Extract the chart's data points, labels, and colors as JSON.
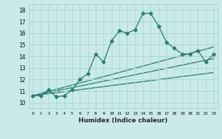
{
  "xlabel": "Humidex (Indice chaleur)",
  "xlim": [
    -0.5,
    23.5
  ],
  "ylim": [
    9.5,
    18.5
  ],
  "yticks": [
    10,
    11,
    12,
    13,
    14,
    15,
    16,
    17,
    18
  ],
  "xticks": [
    0,
    1,
    2,
    3,
    4,
    5,
    6,
    7,
    8,
    9,
    10,
    11,
    12,
    13,
    14,
    15,
    16,
    17,
    18,
    19,
    20,
    21,
    22,
    23
  ],
  "bg_color": "#caeaea",
  "grid_color": "#a8d8d8",
  "line_color": "#2e7d70",
  "line_width": 1.0,
  "marker": "D",
  "marker_size": 2.5,
  "lines": [
    {
      "x": [
        0,
        1,
        2,
        3,
        4,
        5,
        6,
        7,
        8,
        9,
        10,
        11,
        12,
        13,
        14,
        15,
        16,
        17,
        18,
        19,
        20,
        21,
        22,
        23
      ],
      "y": [
        10.6,
        10.6,
        11.1,
        10.5,
        10.6,
        11.1,
        12.0,
        12.5,
        14.2,
        13.5,
        15.3,
        16.2,
        16.0,
        16.3,
        17.7,
        17.7,
        16.6,
        15.2,
        14.7,
        14.2,
        14.2,
        14.5,
        13.5,
        14.2
      ]
    },
    {
      "x": [
        0,
        23
      ],
      "y": [
        10.6,
        14.8
      ]
    },
    {
      "x": [
        0,
        23
      ],
      "y": [
        10.6,
        13.8
      ]
    },
    {
      "x": [
        0,
        23
      ],
      "y": [
        10.6,
        12.6
      ]
    }
  ]
}
